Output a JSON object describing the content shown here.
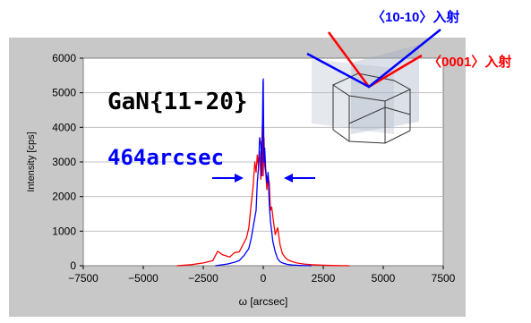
{
  "chart_data": {
    "type": "line",
    "title": "",
    "xlabel": "ω [arcsec]",
    "ylabel": "Intensity [cps]",
    "xlim": [
      -7500,
      7500
    ],
    "ylim": [
      0,
      6000
    ],
    "xticks": [
      "-7500",
      "-5000",
      "-2500",
      "0",
      "2500",
      "5000",
      "7500"
    ],
    "yticks": [
      "0",
      "1000",
      "2000",
      "3000",
      "4000",
      "5000",
      "6000"
    ],
    "grid": "horizontal",
    "series": [
      {
        "color": "#ff0000",
        "x": [
          -3600,
          -3000,
          -2500,
          -2100,
          -1900,
          -1700,
          -1400,
          -1200,
          -1000,
          -850,
          -700,
          -600,
          -500,
          -420,
          -350,
          -300,
          -250,
          -200,
          -150,
          -100,
          -60,
          -30,
          0,
          30,
          60,
          100,
          150,
          200,
          250,
          300,
          350,
          420,
          500,
          600,
          700,
          800,
          900,
          1000,
          1200,
          1400,
          1700,
          2000,
          2500,
          3000,
          3600
        ],
        "y": [
          0,
          30,
          80,
          150,
          420,
          320,
          250,
          380,
          400,
          600,
          800,
          1100,
          1800,
          2300,
          3000,
          2700,
          3200,
          2900,
          3300,
          2500,
          3600,
          4200,
          2600,
          3700,
          2900,
          2700,
          2200,
          2600,
          2400,
          1600,
          1700,
          1300,
          900,
          1100,
          600,
          350,
          250,
          180,
          120,
          80,
          50,
          30,
          15,
          5,
          0
        ]
      },
      {
        "color": "#0000ff",
        "x": [
          -2000,
          -1500,
          -1200,
          -1000,
          -800,
          -600,
          -500,
          -400,
          -300,
          -250,
          -200,
          -150,
          -100,
          -60,
          -30,
          -10,
          0,
          10,
          30,
          60,
          100,
          150,
          200,
          250,
          300,
          350,
          400,
          500,
          600,
          700,
          800,
          1000,
          1200,
          1500,
          2000
        ],
        "y": [
          0,
          50,
          100,
          150,
          300,
          500,
          800,
          1200,
          1600,
          2400,
          2800,
          3700,
          3500,
          2600,
          4300,
          5300,
          5400,
          4400,
          3000,
          3400,
          2800,
          2400,
          2700,
          1800,
          1300,
          1000,
          700,
          400,
          200,
          120,
          80,
          40,
          20,
          10,
          0
        ]
      }
    ],
    "annotations": {
      "sample": "GaN{11-20}",
      "fwhm": "464arcsec",
      "label_1010": "〈10-10〉入射",
      "label_0001": "〈0001〉入射"
    }
  },
  "colors": {
    "panel": "#c8c8c8",
    "plot": "#ffffff",
    "red": "#ff0000",
    "blue": "#0000ff"
  }
}
